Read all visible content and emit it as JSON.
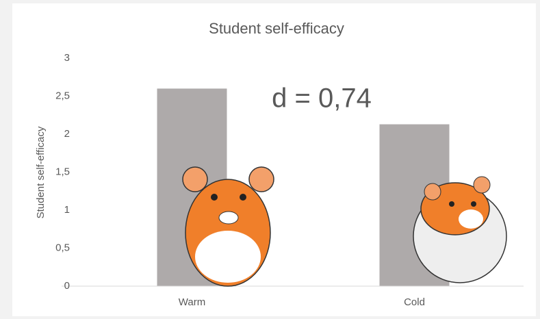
{
  "chart_data": {
    "type": "bar",
    "title": "Student self-efficacy",
    "ylabel": "Student self-efficacy",
    "annotation": "d = 0,74",
    "categories": [
      "Warm",
      "Cold"
    ],
    "values": [
      2.6,
      2.13
    ],
    "color": "#aeaaaa",
    "ylim": [
      0,
      3
    ],
    "yticks": [
      0,
      {
        "value": 0.5,
        "label": "0,5"
      },
      1,
      {
        "value": 1.5,
        "label": "1,5"
      },
      2,
      {
        "value": 2.5,
        "label": "2,5"
      },
      3
    ]
  }
}
